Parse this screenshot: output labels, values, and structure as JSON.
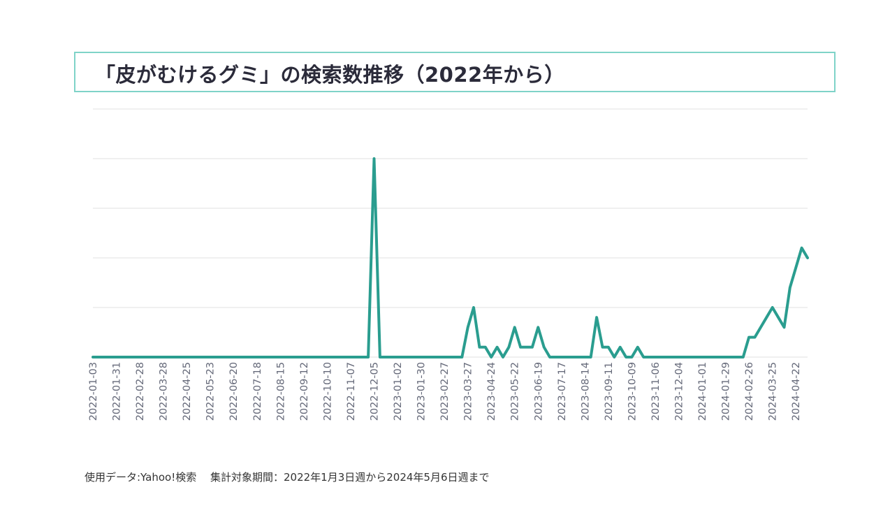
{
  "header": {
    "title": "「皮がむけるグミ」の検索数推移（2022年から）"
  },
  "footer": {
    "note": "使用データ:Yahoo!検索　 集計対象期間：2022年1月3日週から2024年5月6日週まで"
  },
  "chart_data": {
    "type": "line",
    "title": "「皮がむけるグミ」の検索数推移（2022年から）",
    "xlabel": "",
    "ylabel": "",
    "grid": true,
    "legend": "none",
    "ylim": [
      0,
      100
    ],
    "x_tick_labels": [
      "2022-01-03",
      "2022-01-31",
      "2022-02-28",
      "2022-03-28",
      "2022-04-25",
      "2022-05-23",
      "2022-06-20",
      "2022-07-18",
      "2022-08-15",
      "2022-09-12",
      "2022-10-10",
      "2022-11-07",
      "2022-12-05",
      "2023-01-02",
      "2023-01-30",
      "2023-02-27",
      "2023-03-27",
      "2023-04-24",
      "2023-05-22",
      "2023-06-19",
      "2023-07-17",
      "2023-08-14",
      "2023-09-11",
      "2023-10-09",
      "2023-11-06",
      "2023-12-04",
      "2024-01-01",
      "2024-01-29",
      "2024-02-26",
      "2024-03-25",
      "2024-04-22"
    ],
    "series": [
      {
        "color": "#2a9d8f",
        "points": [
          [
            "2022-01-03",
            0
          ],
          [
            "2022-11-28",
            0
          ],
          [
            "2022-12-05",
            80
          ],
          [
            "2022-12-12",
            0
          ],
          [
            "2023-03-20",
            0
          ],
          [
            "2023-03-27",
            12
          ],
          [
            "2023-04-03",
            20
          ],
          [
            "2023-04-10",
            4
          ],
          [
            "2023-04-17",
            4
          ],
          [
            "2023-04-24",
            0
          ],
          [
            "2023-05-01",
            4
          ],
          [
            "2023-05-08",
            0
          ],
          [
            "2023-05-15",
            4
          ],
          [
            "2023-05-22",
            12
          ],
          [
            "2023-05-29",
            4
          ],
          [
            "2023-06-05",
            4
          ],
          [
            "2023-06-12",
            4
          ],
          [
            "2023-06-19",
            12
          ],
          [
            "2023-06-26",
            4
          ],
          [
            "2023-07-03",
            0
          ],
          [
            "2023-08-21",
            0
          ],
          [
            "2023-08-28",
            16
          ],
          [
            "2023-09-04",
            4
          ],
          [
            "2023-09-11",
            4
          ],
          [
            "2023-09-18",
            0
          ],
          [
            "2023-09-25",
            4
          ],
          [
            "2023-10-02",
            0
          ],
          [
            "2023-10-09",
            0
          ],
          [
            "2023-10-16",
            4
          ],
          [
            "2023-10-23",
            0
          ],
          [
            "2024-02-19",
            0
          ],
          [
            "2024-02-26",
            8
          ],
          [
            "2024-03-04",
            8
          ],
          [
            "2024-03-11",
            12
          ],
          [
            "2024-03-18",
            16
          ],
          [
            "2024-03-25",
            20
          ],
          [
            "2024-04-01",
            16
          ],
          [
            "2024-04-08",
            12
          ],
          [
            "2024-04-15",
            28
          ],
          [
            "2024-04-29",
            44
          ],
          [
            "2024-05-06",
            40
          ]
        ]
      }
    ]
  }
}
